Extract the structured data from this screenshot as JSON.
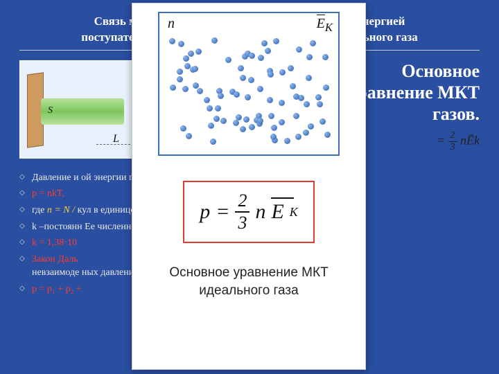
{
  "slide": {
    "background_color": "#2a4ea0",
    "title": "Связь между давлением и средней кинетической энергией\nпоступательного теплового движения молекул идеального газа",
    "illustration": {
      "S": "S",
      "L": "L"
    },
    "heading_right": "Основное\nуравнение МКТ\nгазов.",
    "eq_right_prefix": "= ",
    "eq_right_frac_num": "2",
    "eq_right_frac_den": "3",
    "eq_right_tail": "nĒk",
    "bullets": [
      {
        "pre": "Давление и",
        "tail": "                                                                                      ой энергии пост                                                                                      ящихся в единице об"
      },
      {
        "red": "p = nkT,",
        "tail": ""
      },
      {
        "pre": "где ",
        "y": "n = N / ",
        "tail": "                                                                                  кул в единице об"
      },
      {
        "pre": "k –постоянн",
        "tail": "                                                                                               Ее численное з"
      },
      {
        "red": "k = 1,38·10",
        "tail": ""
      },
      {
        "red": "Закон Даль",
        "tail": "\nневзаимоде                                                                                       ных давлений"
      },
      {
        "red": "p = p₁ + p₂ +",
        "tail": ""
      }
    ]
  },
  "overlay": {
    "panel1": {
      "n_label": "n",
      "ek_label_E": "E",
      "ek_label_K": "K",
      "dot_count": 80
    },
    "equation": {
      "lhs": "p",
      "equals": "=",
      "frac_num": "2",
      "frac_den": "3",
      "n": "n",
      "E": "E",
      "K": "K"
    },
    "caption": "Основное уравнение МКТ\nидеального газа"
  },
  "colors": {
    "panel1_border": "#3a6fb7",
    "panel2_border": "#e13a2e",
    "dot_fill_light": "#8fb8ef",
    "dot_fill_dark": "#2b5cab"
  }
}
